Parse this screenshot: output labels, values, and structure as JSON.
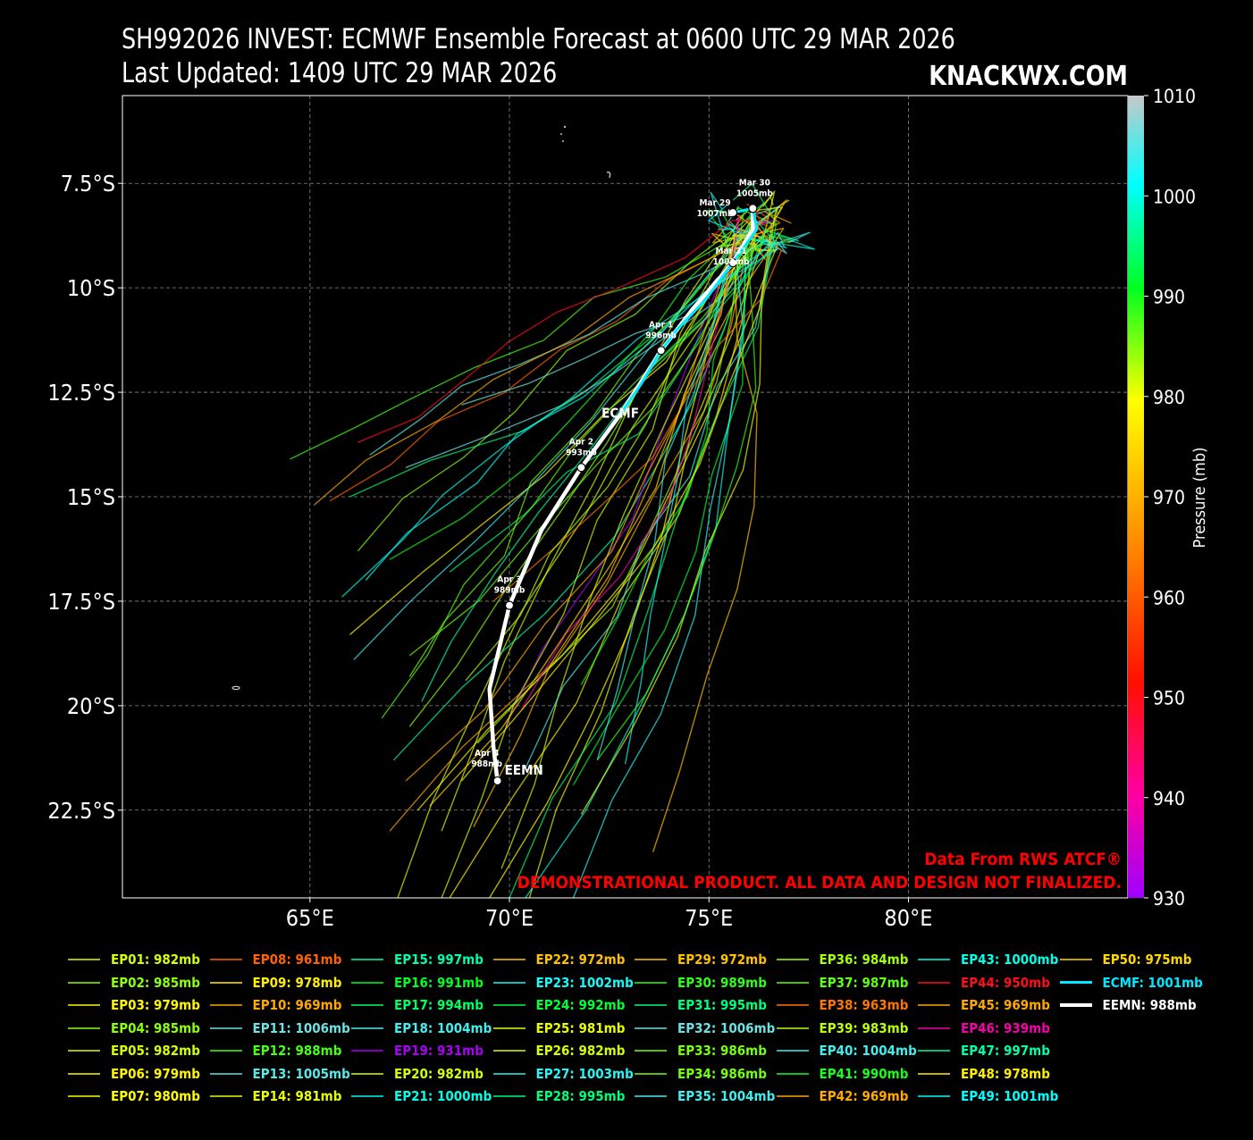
{
  "title": "SH992026 INVEST: ECMWF Ensemble Forecast at 0600 UTC 29 MAR 2026",
  "subtitle": "Last Updated: 1409 UTC 29 MAR 2026",
  "brand": "KNACKWX.COM",
  "colorbar": {
    "label": "Pressure (mb)",
    "ticks": [
      "1010",
      "1000",
      "990",
      "980",
      "970",
      "960",
      "950",
      "940",
      "930"
    ]
  },
  "notes": {
    "source": "Data From RWS ATCF®",
    "disclaimer": "DEMONSTRATIONAL PRODUCT. ALL DATA AND DESIGN NOT FINALIZED."
  },
  "map_labels": {
    "ecmf": "ECMF",
    "eemn": "EEMN"
  },
  "chart_data": {
    "type": "line",
    "xlim": [
      60.3,
      85.5
    ],
    "ylim": [
      -24.6,
      -5.4
    ],
    "xticks": [
      65,
      70,
      75,
      80
    ],
    "xtick_labels": [
      "65°E",
      "70°E",
      "75°E",
      "80°E"
    ],
    "yticks": [
      -7.5,
      -10,
      -12.5,
      -15,
      -17.5,
      -20,
      -22.5
    ],
    "ytick_labels": [
      "7.5°S",
      "10°S",
      "12.5°S",
      "15°S",
      "17.5°S",
      "20°S",
      "22.5°S"
    ],
    "grid": true,
    "colorbar_range": [
      930,
      1010
    ],
    "track_points": [
      {
        "label": "Mar 29",
        "pressure": "1007mb",
        "lon": 75.6,
        "lat": -8.2
      },
      {
        "label": "Mar 30",
        "pressure": "1005mb",
        "lon": 76.1,
        "lat": -8.1
      },
      {
        "label": "Mar 31",
        "pressure": "1001mb",
        "lon": 75.6,
        "lat": -9.4
      },
      {
        "label": "Apr  1",
        "pressure": "996mb",
        "lon": 73.8,
        "lat": -11.5
      },
      {
        "label": "Apr  2",
        "pressure": "993mb",
        "lon": 71.8,
        "lat": -14.3
      },
      {
        "label": "Apr  3",
        "pressure": "989mb",
        "lon": 70.0,
        "lat": -17.6
      },
      {
        "label": "Apr  4",
        "pressure": "988mb",
        "lon": 69.7,
        "lat": -21.8
      }
    ],
    "eemn_track": [
      [
        76.1,
        -8.1
      ],
      [
        76.1,
        -8.6
      ],
      [
        75.6,
        -9.4
      ],
      [
        74.6,
        -10.5
      ],
      [
        73.8,
        -11.5
      ],
      [
        72.8,
        -13.0
      ],
      [
        71.8,
        -14.3
      ],
      [
        70.8,
        -15.8
      ],
      [
        70.0,
        -17.6
      ],
      [
        69.5,
        -19.6
      ],
      [
        69.6,
        -21.0
      ],
      [
        69.7,
        -21.8
      ]
    ],
    "ecmf_track": [
      [
        75.6,
        -8.2
      ],
      [
        76.1,
        -8.1
      ],
      [
        76.2,
        -8.6
      ],
      [
        75.6,
        -9.4
      ],
      [
        74.9,
        -10.3
      ],
      [
        74.2,
        -11.0
      ],
      [
        73.8,
        -11.5
      ],
      [
        73.3,
        -12.3
      ],
      [
        72.8,
        -13.0
      ]
    ],
    "series": [
      {
        "name": "EP01",
        "label": "982mb",
        "pressure": 982,
        "endpoint": [
          67.2,
          -24.6
        ]
      },
      {
        "name": "EP02",
        "label": "985mb",
        "pressure": 985,
        "endpoint": [
          66.2,
          -16.3
        ]
      },
      {
        "name": "EP03",
        "label": "979mb",
        "pressure": 979,
        "endpoint": [
          66.0,
          -18.3
        ]
      },
      {
        "name": "EP04",
        "label": "985mb",
        "pressure": 985,
        "endpoint": [
          67.5,
          -20.5
        ]
      },
      {
        "name": "EP05",
        "label": "982mb",
        "pressure": 982,
        "endpoint": [
          68.3,
          -23.0
        ]
      },
      {
        "name": "EP06",
        "label": "979mb",
        "pressure": 979,
        "endpoint": [
          67.7,
          -22.5
        ]
      },
      {
        "name": "EP07",
        "label": "980mb",
        "pressure": 980,
        "endpoint": [
          69.5,
          -24.6
        ]
      },
      {
        "name": "EP08",
        "label": "961mb",
        "pressure": 961,
        "endpoint": [
          65.5,
          -15.1
        ]
      },
      {
        "name": "EP09",
        "label": "978mb",
        "pressure": 978,
        "endpoint": [
          68.5,
          -24.6
        ]
      },
      {
        "name": "EP10",
        "label": "969mb",
        "pressure": 969,
        "endpoint": [
          67.0,
          -23.0
        ]
      },
      {
        "name": "EP11",
        "label": "1006mb",
        "pressure": 1006,
        "endpoint": [
          68.8,
          -12.8
        ]
      },
      {
        "name": "EP12",
        "label": "988mb",
        "pressure": 988,
        "endpoint": [
          64.5,
          -14.1
        ]
      },
      {
        "name": "EP13",
        "label": "1005mb",
        "pressure": 1005,
        "endpoint": [
          66.5,
          -14.0
        ]
      },
      {
        "name": "EP14",
        "label": "981mb",
        "pressure": 981,
        "endpoint": [
          70.5,
          -24.6
        ]
      },
      {
        "name": "EP15",
        "label": "997mb",
        "pressure": 997,
        "endpoint": [
          67.1,
          -21.3
        ]
      },
      {
        "name": "EP16",
        "label": "991mb",
        "pressure": 991,
        "endpoint": [
          71.8,
          -19.5
        ]
      },
      {
        "name": "EP17",
        "label": "994mb",
        "pressure": 994,
        "endpoint": [
          70.0,
          -24.6
        ]
      },
      {
        "name": "EP18",
        "label": "1004mb",
        "pressure": 1004,
        "endpoint": [
          66.1,
          -18.9
        ]
      },
      {
        "name": "EP19",
        "label": "931mb",
        "pressure": 931,
        "endpoint": [
          69.9,
          -20.5
        ]
      },
      {
        "name": "EP20",
        "label": "982mb",
        "pressure": 982,
        "endpoint": [
          68.3,
          -24.6
        ]
      },
      {
        "name": "EP21",
        "label": "1000mb",
        "pressure": 1000,
        "endpoint": [
          70.4,
          -24.6
        ]
      },
      {
        "name": "EP22",
        "label": "972mb",
        "pressure": 972,
        "endpoint": [
          69.1,
          -22.9
        ]
      },
      {
        "name": "EP23",
        "label": "1002mb",
        "pressure": 1002,
        "endpoint": [
          72.9,
          -21.4
        ]
      },
      {
        "name": "EP24",
        "label": "992mb",
        "pressure": 992,
        "endpoint": [
          71.6,
          -21.9
        ]
      },
      {
        "name": "EP25",
        "label": "981mb",
        "pressure": 981,
        "endpoint": [
          71.8,
          -22.6
        ]
      },
      {
        "name": "EP26",
        "label": "982mb",
        "pressure": 982,
        "endpoint": [
          69.8,
          -23.9
        ]
      },
      {
        "name": "EP27",
        "label": "1003mb",
        "pressure": 1003,
        "endpoint": [
          71.6,
          -24.6
        ]
      },
      {
        "name": "EP28",
        "label": "995mb",
        "pressure": 995,
        "endpoint": [
          68.5,
          -16.8
        ]
      },
      {
        "name": "EP29",
        "label": "972mb",
        "pressure": 972,
        "endpoint": [
          73.6,
          -23.5
        ]
      },
      {
        "name": "EP30",
        "label": "989mb",
        "pressure": 989,
        "endpoint": [
          72.2,
          -21.3
        ]
      },
      {
        "name": "EP31",
        "label": "995mb",
        "pressure": 995,
        "endpoint": [
          66.0,
          -15.0
        ]
      },
      {
        "name": "EP32",
        "label": "1006mb",
        "pressure": 1006,
        "endpoint": [
          67.4,
          -14.3
        ]
      },
      {
        "name": "EP33",
        "label": "986mb",
        "pressure": 986,
        "endpoint": [
          67.5,
          -18.8
        ]
      },
      {
        "name": "EP34",
        "label": "986mb",
        "pressure": 986,
        "endpoint": [
          67.5,
          -19.3
        ]
      },
      {
        "name": "EP35",
        "label": "1004mb",
        "pressure": 1004,
        "endpoint": [
          72.2,
          -21.3
        ]
      },
      {
        "name": "EP36",
        "label": "984mb",
        "pressure": 984,
        "endpoint": [
          69.2,
          -20.9
        ]
      },
      {
        "name": "EP37",
        "label": "987mb",
        "pressure": 987,
        "endpoint": [
          66.8,
          -20.3
        ]
      },
      {
        "name": "EP38",
        "label": "963mb",
        "pressure": 963,
        "endpoint": [
          69.6,
          -17.5
        ]
      },
      {
        "name": "EP39",
        "label": "983mb",
        "pressure": 983,
        "endpoint": [
          68.9,
          -19.4
        ]
      },
      {
        "name": "EP40",
        "label": "1004mb",
        "pressure": 1004,
        "endpoint": [
          70.4,
          -21.5
        ]
      },
      {
        "name": "EP41",
        "label": "990mb",
        "pressure": 990,
        "endpoint": [
          67.0,
          -16.5
        ]
      },
      {
        "name": "EP42",
        "label": "969mb",
        "pressure": 969,
        "endpoint": [
          67.4,
          -21.8
        ]
      },
      {
        "name": "EP43",
        "label": "1000mb",
        "pressure": 1000,
        "endpoint": [
          65.8,
          -17.4
        ]
      },
      {
        "name": "EP44",
        "label": "950mb",
        "pressure": 950,
        "endpoint": [
          66.2,
          -13.7
        ]
      },
      {
        "name": "EP45",
        "label": "969mb",
        "pressure": 969,
        "endpoint": [
          65.1,
          -15.2
        ]
      },
      {
        "name": "EP46",
        "label": "939mb",
        "pressure": 939,
        "endpoint": [
          70.3,
          -20.1
        ]
      },
      {
        "name": "EP47",
        "label": "997mb",
        "pressure": 997,
        "endpoint": [
          67.8,
          -19.9
        ]
      },
      {
        "name": "EP48",
        "label": "978mb",
        "pressure": 978,
        "endpoint": [
          68.8,
          -21.8
        ]
      },
      {
        "name": "EP49",
        "label": "1001mb",
        "pressure": 1001,
        "endpoint": [
          66.4,
          -17.0
        ]
      },
      {
        "name": "EP50",
        "label": "975mb",
        "pressure": 975,
        "endpoint": [
          68.0,
          -22.4
        ]
      },
      {
        "name": "ECMF",
        "label": "1001mb",
        "pressure": 1001
      },
      {
        "name": "EEMN",
        "label": "988mb",
        "pressure": 988
      }
    ]
  }
}
